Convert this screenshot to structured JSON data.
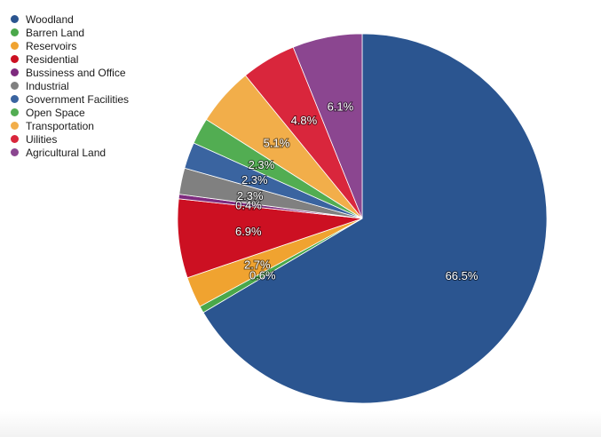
{
  "chart_data": {
    "type": "pie",
    "title": "",
    "legend_position": "top-left",
    "slices": [
      {
        "name": "Woodland",
        "value": 66.5,
        "label": "66.5%",
        "color": "#2b5590"
      },
      {
        "name": "Barren Land",
        "value": 0.6,
        "label": "0.6%",
        "color": "#4aa84a"
      },
      {
        "name": "Reservoirs",
        "value": 2.7,
        "label": "2.7%",
        "color": "#f0a330"
      },
      {
        "name": "Residential",
        "value": 6.9,
        "label": "6.9%",
        "color": "#cc1022"
      },
      {
        "name": "Bussiness and Office",
        "value": 0.4,
        "label": "0.4%",
        "color": "#7e2a7e"
      },
      {
        "name": "Industrial",
        "value": 2.3,
        "label": "2.3%",
        "color": "#808080"
      },
      {
        "name": "Government Facilities",
        "value": 2.3,
        "label": "2.3%",
        "color": "#3a64a0"
      },
      {
        "name": "Open Space",
        "value": 2.3,
        "label": "2.3%",
        "color": "#52ad52"
      },
      {
        "name": "Transportation",
        "value": 5.1,
        "label": "5.1%",
        "color": "#f2ae4a"
      },
      {
        "name": "Uilities",
        "value": 4.8,
        "label": "4.8%",
        "color": "#d9263c"
      },
      {
        "name": "Agricultural Land",
        "value": 6.1,
        "label": "6.1%",
        "color": "#8b4690"
      }
    ]
  }
}
